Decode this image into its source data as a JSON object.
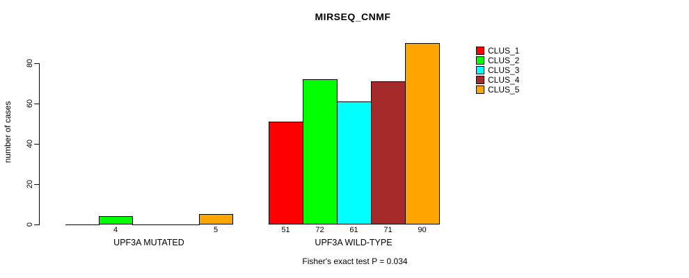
{
  "chart_data": {
    "type": "bar",
    "title": "MIRSEQ_CNMF",
    "xlabel": "",
    "ylabel": "number of cases",
    "ylim": [
      0,
      90
    ],
    "yticks": [
      0,
      20,
      40,
      60,
      80
    ],
    "grid": false,
    "legend_position": "right",
    "series": [
      {
        "name": "CLUS_1",
        "color": "#FF0000"
      },
      {
        "name": "CLUS_2",
        "color": "#00FF00"
      },
      {
        "name": "CLUS_3",
        "color": "#00FFFF"
      },
      {
        "name": "CLUS_4",
        "color": "#A52A2A"
      },
      {
        "name": "CLUS_5",
        "color": "#FFA500"
      }
    ],
    "groups": [
      {
        "label": "UPF3A MUTATED",
        "values": [
          0,
          4,
          0,
          0,
          5
        ]
      },
      {
        "label": "UPF3A WILD-TYPE",
        "values": [
          51,
          72,
          61,
          71,
          90
        ]
      }
    ],
    "bar_value_labels_visible": [
      "4",
      "5",
      "51",
      "72",
      "61",
      "71",
      "90"
    ],
    "annotation": "Fisher's exact test P = 0.034"
  }
}
